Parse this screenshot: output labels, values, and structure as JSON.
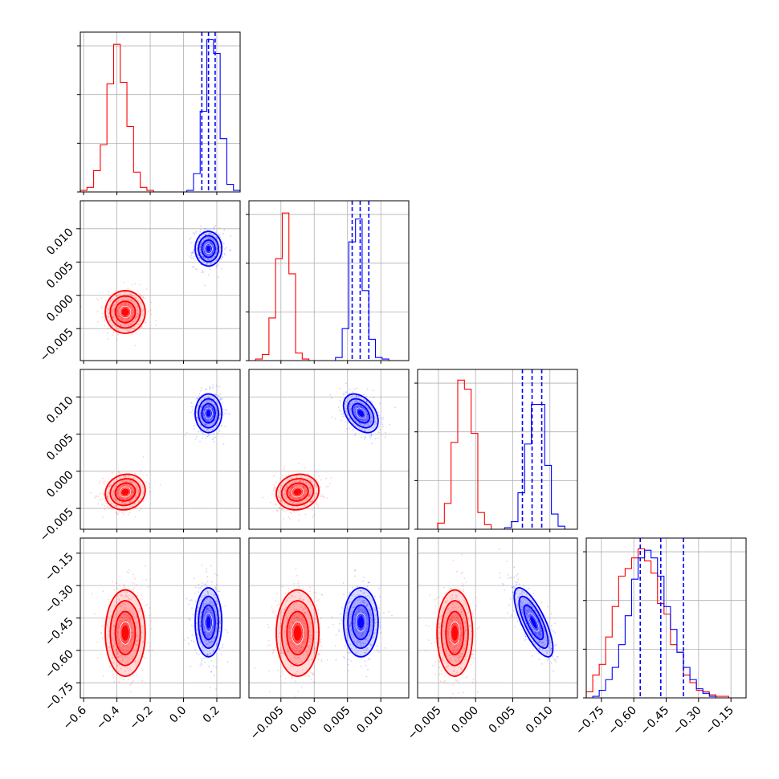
{
  "colors": {
    "series_a": "#ff0000",
    "series_b": "#0000ff",
    "grid": "#b0b0b0",
    "frame": "#000000"
  },
  "chart_data": {
    "type": "corner",
    "grid": true,
    "parameters": [
      {
        "range": [
          -0.62,
          0.34
        ],
        "ticks": [
          -0.6,
          -0.4,
          -0.2,
          0.0,
          0.2
        ],
        "tick_labels": [
          "−0.6",
          "−0.4",
          "−0.2",
          "0.0",
          "0.2"
        ],
        "hist_bins": [
          -0.62,
          -0.58,
          -0.54,
          -0.5,
          -0.46,
          -0.42,
          -0.38,
          -0.34,
          -0.3,
          -0.26,
          -0.22,
          -0.18,
          -0.14,
          -0.1,
          -0.06,
          -0.02,
          0.02,
          0.06,
          0.1,
          0.14,
          0.18,
          0.22,
          0.26,
          0.3,
          0.34
        ],
        "hist_a": [
          0.01,
          0.03,
          0.14,
          0.31,
          0.71,
          0.97,
          0.72,
          0.43,
          0.13,
          0.03,
          0.01,
          0,
          0,
          0,
          0,
          0,
          0,
          0,
          0,
          0,
          0,
          0,
          0,
          0
        ],
        "hist_b": [
          0,
          0,
          0,
          0,
          0,
          0,
          0,
          0,
          0,
          0,
          0,
          0,
          0,
          0,
          0,
          0,
          0.01,
          0.12,
          0.53,
          1.0,
          0.91,
          0.35,
          0.05,
          0.01
        ],
        "quantiles_b": [
          0.11,
          0.15,
          0.19
        ]
      },
      {
        "range": [
          -0.0098,
          0.0142
        ],
        "ticks": [
          -0.005,
          0.0,
          0.005,
          0.01
        ],
        "tick_labels": [
          "−0.005",
          "0.000",
          "0.005",
          "0.010"
        ],
        "hist_bins": [
          -0.0098,
          -0.0088,
          -0.0078,
          -0.0068,
          -0.0058,
          -0.0048,
          -0.0038,
          -0.0028,
          -0.0018,
          -0.0008,
          0.0002,
          0.0012,
          0.0022,
          0.0032,
          0.0042,
          0.0052,
          0.0062,
          0.0072,
          0.0082,
          0.0092,
          0.0102,
          0.0112,
          0.0122,
          0.0132,
          0.0142
        ],
        "hist_a": [
          0,
          0.01,
          0.04,
          0.28,
          0.67,
          0.97,
          0.57,
          0.05,
          0.01,
          0,
          0,
          0,
          0,
          0,
          0,
          0,
          0,
          0,
          0,
          0,
          0,
          0,
          0,
          0
        ],
        "hist_b": [
          0,
          0,
          0,
          0,
          0,
          0,
          0,
          0,
          0,
          0,
          0,
          0,
          0,
          0.02,
          0.21,
          0.78,
          0.93,
          0.46,
          0.14,
          0.02,
          0.01,
          0,
          0,
          0
        ],
        "quantiles_b": [
          0.0057,
          0.0069,
          0.0082
        ]
      },
      {
        "range": [
          -0.0078,
          0.0137
        ],
        "ticks": [
          -0.005,
          0.0,
          0.005,
          0.01
        ],
        "tick_labels": [
          "−0.005",
          "0.000",
          "0.005",
          "0.010"
        ],
        "hist_bins": [
          -0.0078,
          -0.0069,
          -0.006,
          -0.0051,
          -0.0042,
          -0.0033,
          -0.0024,
          -0.0015,
          -0.0006,
          0.0003,
          0.0012,
          0.0021,
          0.003,
          0.0039,
          0.0048,
          0.0057,
          0.0066,
          0.0075,
          0.0084,
          0.0093,
          0.0102,
          0.0111,
          0.012,
          0.0129,
          0.0137
        ],
        "hist_a": [
          0,
          0,
          0,
          0.04,
          0.17,
          0.57,
          0.98,
          0.92,
          0.63,
          0.11,
          0.03,
          0,
          0,
          0,
          0,
          0,
          0,
          0,
          0,
          0,
          0,
          0,
          0,
          0
        ],
        "hist_b": [
          0,
          0,
          0,
          0,
          0,
          0,
          0,
          0,
          0,
          0,
          0,
          0,
          0,
          0.01,
          0.05,
          0.24,
          0.56,
          0.82,
          0.82,
          0.42,
          0.1,
          0.02,
          0,
          0
        ],
        "quantiles_b": [
          0.0063,
          0.0076,
          0.0089
        ]
      },
      {
        "range": [
          -0.82,
          -0.08
        ],
        "ticks": [
          -0.75,
          -0.6,
          -0.45,
          -0.3,
          -0.15
        ],
        "tick_labels": [
          "−0.75",
          "−0.60",
          "−0.45",
          "−0.30",
          "−0.15"
        ],
        "hist_bins": [
          -0.82,
          -0.79,
          -0.76,
          -0.73,
          -0.7,
          -0.67,
          -0.64,
          -0.61,
          -0.58,
          -0.55,
          -0.52,
          -0.49,
          -0.46,
          -0.43,
          -0.4,
          -0.37,
          -0.34,
          -0.31,
          -0.28,
          -0.25,
          -0.22,
          -0.19,
          -0.16,
          -0.13,
          -0.1
        ],
        "hist_a": [
          0.04,
          0.15,
          0.22,
          0.4,
          0.6,
          0.8,
          0.85,
          0.92,
          0.98,
          0.9,
          0.82,
          0.62,
          0.55,
          0.35,
          0.3,
          0.15,
          0.1,
          0.05,
          0.04,
          0.02,
          0.01,
          0.01,
          0,
          0
        ],
        "hist_b": [
          0,
          0.01,
          0.05,
          0.12,
          0.2,
          0.35,
          0.54,
          0.78,
          0.92,
          0.97,
          0.92,
          0.8,
          0.6,
          0.45,
          0.3,
          0.2,
          0.12,
          0.06,
          0.03,
          0.01,
          0,
          0,
          0,
          0
        ],
        "quantiles_b": [
          -0.57,
          -0.475,
          -0.37
        ]
      }
    ],
    "series": [
      {
        "name": "",
        "color": "#ff0000",
        "means": [
          -0.35,
          -0.0025,
          -0.0028,
          -0.52
        ],
        "sds": [
          0.06,
          0.0016,
          0.0012,
          0.1
        ],
        "corr": [
          [
            1,
            0,
            0.1,
            0
          ],
          [
            0,
            1,
            0.1,
            0
          ],
          [
            0.1,
            0.1,
            1,
            0
          ],
          [
            0,
            0,
            0,
            1
          ]
        ]
      },
      {
        "name": "",
        "color": "#0000ff",
        "means": [
          0.15,
          0.007,
          0.0078,
          -0.47
        ],
        "sds": [
          0.04,
          0.0013,
          0.0013,
          0.08
        ],
        "corr": [
          [
            1,
            0,
            0,
            0
          ],
          [
            0,
            1,
            -0.4,
            0
          ],
          [
            0,
            -0.4,
            1,
            -0.75
          ],
          [
            0,
            0,
            -0.75,
            1
          ]
        ]
      }
    ],
    "contour_levels_sigma": [
      0.5,
      1.0,
      1.5,
      2.0
    ]
  }
}
